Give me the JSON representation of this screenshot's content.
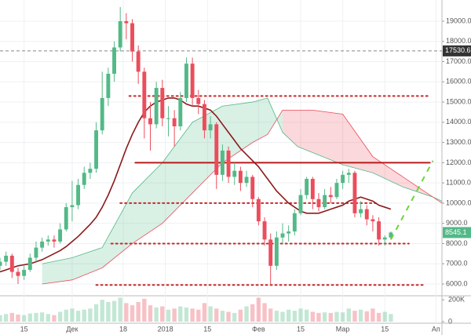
{
  "chart_data": {
    "type": "candlestick",
    "x": [
      6,
      8,
      10,
      12,
      14,
      16,
      18,
      20,
      22,
      24,
      26,
      28,
      30,
      32,
      34,
      36,
      38,
      40,
      42,
      44,
      46,
      48,
      50,
      52,
      54,
      56,
      58,
      60,
      62,
      64,
      66,
      68,
      70,
      72,
      74,
      76,
      78,
      80,
      82,
      84,
      86,
      88,
      90,
      92,
      94,
      96,
      98,
      100,
      102,
      104,
      106,
      108,
      110,
      112,
      114,
      116,
      118,
      120,
      122,
      124,
      126,
      128,
      130,
      132,
      134,
      136
    ],
    "open": [
      6900,
      7100,
      7400,
      6600,
      6400,
      6700,
      7300,
      7800,
      8100,
      8200,
      8100,
      8700,
      9800,
      9900,
      10900,
      11500,
      11700,
      13600,
      15200,
      16400,
      17700,
      19000,
      18900,
      17500,
      16500,
      14200,
      13900,
      15700,
      14200,
      14200,
      13800,
      15200,
      16900,
      15200,
      14900,
      13600,
      13900,
      11400,
      12600,
      11300,
      11600,
      11000,
      11300,
      10200,
      9100,
      8200,
      6900,
      8300,
      8500,
      8600,
      9500,
      10400,
      11200,
      10200,
      9800,
      10400,
      10300,
      11000,
      11400,
      11500,
      9500,
      9700,
      9200,
      9100,
      8200,
      8300
    ],
    "high": [
      7300,
      7600,
      7500,
      6800,
      6900,
      7500,
      8100,
      8300,
      8400,
      8400,
      9000,
      10000,
      11100,
      11200,
      11800,
      12000,
      14000,
      16500,
      16700,
      18000,
      19700,
      19400,
      19100,
      17800,
      16700,
      15000,
      16000,
      16100,
      14800,
      14600,
      15500,
      17200,
      17200,
      15600,
      15100,
      14300,
      14000,
      12900,
      12800,
      12000,
      11800,
      11600,
      11400,
      10300,
      9300,
      8500,
      8600,
      9000,
      8900,
      9700,
      10700,
      11300,
      11300,
      10500,
      10700,
      10800,
      11200,
      11600,
      11700,
      11600,
      10100,
      9900,
      9400,
      9300,
      8400,
      8600
    ],
    "low": [
      6700,
      6900,
      6300,
      6000,
      6200,
      6600,
      7100,
      7600,
      7900,
      7800,
      8000,
      8600,
      9100,
      9700,
      10700,
      11200,
      11500,
      13400,
      14800,
      16000,
      17500,
      18100,
      17000,
      15900,
      13200,
      12600,
      13700,
      13800,
      13300,
      12800,
      13600,
      15000,
      14800,
      14400,
      13200,
      13200,
      10700,
      11100,
      11000,
      10900,
      10600,
      10800,
      9800,
      8900,
      7900,
      6000,
      6700,
      8000,
      8100,
      8400,
      9400,
      10200,
      9700,
      9600,
      9700,
      10000,
      10200,
      10700,
      11000,
      9300,
      9300,
      8900,
      8600,
      7900,
      7900,
      8200
    ],
    "close": [
      7100,
      7400,
      6600,
      6400,
      6700,
      7300,
      7800,
      8100,
      8200,
      8100,
      8700,
      9800,
      9900,
      10900,
      11500,
      11700,
      13600,
      15200,
      16400,
      17700,
      19000,
      18900,
      17500,
      16500,
      14200,
      13900,
      15700,
      14200,
      14200,
      13800,
      15200,
      16900,
      15200,
      14900,
      13600,
      13900,
      11400,
      12600,
      11300,
      11600,
      11000,
      11300,
      10200,
      9100,
      8200,
      6900,
      8300,
      8500,
      8600,
      9500,
      10400,
      11200,
      10200,
      9800,
      10400,
      10300,
      11000,
      11400,
      11500,
      9500,
      9700,
      9200,
      9100,
      8200,
      8300,
      8545.1
    ],
    "volume": [
      60000,
      70000,
      80000,
      65000,
      60000,
      75000,
      80000,
      85000,
      70000,
      60000,
      90000,
      110000,
      120000,
      100000,
      110000,
      120000,
      160000,
      200000,
      180000,
      190000,
      220000,
      170000,
      150000,
      180000,
      210000,
      150000,
      130000,
      140000,
      110000,
      120000,
      140000,
      130000,
      120000,
      110000,
      170000,
      140000,
      120000,
      100000,
      90000,
      80000,
      110000,
      140000,
      160000,
      220000,
      170000,
      120000,
      100000,
      90000,
      110000,
      100000,
      120000,
      110000,
      90000,
      80000,
      85000,
      80000,
      90000,
      85000,
      120000,
      100000,
      110000,
      95000,
      120000,
      80000,
      90000,
      70000
    ],
    "up_color": "#53b987",
    "down_color": "#eb4d5c",
    "moving_average": {
      "color": "#8b1a1a",
      "values": [
        6600,
        6700,
        6800,
        6900,
        6950,
        7000,
        7100,
        7200,
        7350,
        7500,
        7650,
        7850,
        8100,
        8350,
        8650,
        8950,
        9300,
        9800,
        10400,
        11100,
        11900,
        12700,
        13400,
        14000,
        14500,
        14800,
        15000,
        15100,
        15200,
        15200,
        15100,
        14900,
        14800,
        14800,
        14700,
        14600,
        14300,
        13900,
        13500,
        13100,
        12700,
        12400,
        12100,
        11800,
        11400,
        11000,
        10600,
        10300,
        10000,
        9800,
        9600,
        9500,
        9500,
        9500,
        9600,
        9700,
        9800,
        9900,
        10100,
        10200,
        10300,
        10200,
        10100,
        9900,
        9800,
        9700
      ]
    },
    "cloud": {
      "x": [
        20,
        30,
        40,
        50,
        60,
        70,
        80,
        90,
        95,
        100,
        105,
        110,
        120,
        130,
        140,
        150,
        153
      ],
      "span_a": [
        7000,
        7300,
        7800,
        10500,
        12000,
        14000,
        14800,
        15000,
        15200,
        13500,
        12800,
        12500,
        11900,
        11500,
        10800,
        10300,
        10100
      ],
      "span_b": [
        6000,
        6200,
        6800,
        8000,
        9000,
        10500,
        12000,
        13000,
        13400,
        14600,
        14600,
        14600,
        14400,
        12300,
        11300,
        10300,
        10000
      ],
      "bull_color": "#53b987",
      "bear_color": "#eb4d5c"
    },
    "levels": [
      {
        "value": 15300,
        "from": 49,
        "to": 149,
        "style": "dotted",
        "color": "#c62828"
      },
      {
        "value": 12000,
        "from": 51,
        "to": 149,
        "style": "solid",
        "color": "#b71c1c"
      },
      {
        "value": 10000,
        "from": 46,
        "to": 131,
        "style": "dotted",
        "color": "#c62828"
      },
      {
        "value": 8000,
        "from": 43,
        "to": 142,
        "style": "dotted",
        "color": "#c62828"
      },
      {
        "value": 5950,
        "from": 38,
        "to": 147,
        "style": "dotted",
        "color": "#c62828"
      }
    ],
    "projection": {
      "x": [
        136,
        150
      ],
      "y": [
        8200,
        12100
      ],
      "color": "#6cd43a"
    },
    "marker_level": 17530.6,
    "xlim": [
      6,
      153
    ],
    "xticks": [
      {
        "value": 14,
        "label": "15"
      },
      {
        "value": 30,
        "label": "Дек"
      },
      {
        "value": 47,
        "label": "18"
      },
      {
        "value": 61,
        "label": "2018"
      },
      {
        "value": 75,
        "label": "15"
      },
      {
        "value": 92,
        "label": "Фев"
      },
      {
        "value": 106,
        "label": "15"
      },
      {
        "value": 120,
        "label": "Мар"
      },
      {
        "value": 134,
        "label": "15"
      },
      {
        "value": 151,
        "label": "Ап"
      }
    ],
    "ylim": [
      5495,
      20048
    ],
    "yticks": [
      {
        "value": 6000,
        "label": "6000.0"
      },
      {
        "value": 7000,
        "label": "7000.0"
      },
      {
        "value": 8000,
        "label": "8000.0"
      },
      {
        "value": 9000,
        "label": "9000.0"
      },
      {
        "value": 10000,
        "label": "10000.0"
      },
      {
        "value": 11000,
        "label": "11000.0"
      },
      {
        "value": 12000,
        "label": "12000.0"
      },
      {
        "value": 13000,
        "label": "13000.0"
      },
      {
        "value": 14000,
        "label": "14000.0"
      },
      {
        "value": 15000,
        "label": "15000.0"
      },
      {
        "value": 16000,
        "label": "16000.0"
      },
      {
        "value": 17000,
        "label": "17000.0"
      },
      {
        "value": 18000,
        "label": "18000.0"
      },
      {
        "value": 19000,
        "label": "19000.0"
      }
    ],
    "volume_ylim": [
      0,
      230000
    ],
    "volume_ticks": [
      {
        "value": 200000,
        "label": "200K"
      },
      0
    ],
    "grid": true
  }
}
